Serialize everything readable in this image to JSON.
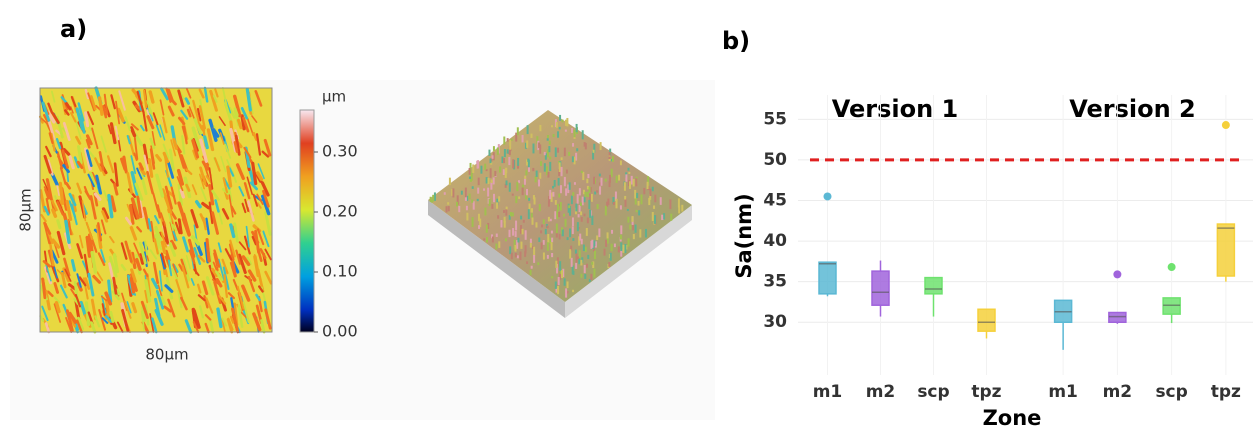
{
  "panel_a": {
    "label": "a)",
    "map": {
      "x_label": "80µm",
      "y_label": "80µm"
    },
    "colorbar": {
      "unit": "µm",
      "lim": [
        0,
        0.37
      ],
      "ticks": [
        {
          "value": 0,
          "label": "0.00"
        },
        {
          "value": 0.1,
          "label": "0.10"
        },
        {
          "value": 0.2,
          "label": "0.20"
        },
        {
          "value": 0.3,
          "label": "0.30"
        }
      ]
    }
  },
  "chart_data": {
    "type": "box",
    "label": "b)",
    "y_label": "Sa(nm)",
    "x_label": "Zone",
    "ylim": [
      23.5,
      58
    ],
    "yticks": [
      30,
      35,
      40,
      45,
      50,
      55
    ],
    "grid": true,
    "threshold": {
      "value": 50,
      "color": "#e02020"
    },
    "colors": [
      "#5bb8d4",
      "#a064dc",
      "#6ee26e",
      "#f5d03b"
    ],
    "facets": [
      {
        "title": "Version 1",
        "categories": [
          "m1",
          "m2",
          "scp",
          "tpz"
        ],
        "boxes": [
          {
            "low": 33.2,
            "q1": 33.5,
            "median": 37.2,
            "q3": 37.4,
            "high": 37.4,
            "outliers": [
              45.5
            ]
          },
          {
            "low": 30.7,
            "q1": 32.1,
            "median": 33.7,
            "q3": 36.3,
            "high": 37.6
          },
          {
            "low": 30.7,
            "q1": 33.5,
            "median": 34.1,
            "q3": 35.5,
            "high": 35.5
          },
          {
            "low": 28.0,
            "q1": 28.9,
            "median": 30.0,
            "q3": 31.6,
            "high": 31.6
          }
        ]
      },
      {
        "title": "Version 2",
        "categories": [
          "m1",
          "m2",
          "scp",
          "tpz"
        ],
        "boxes": [
          {
            "low": 26.6,
            "q1": 30.0,
            "median": 31.3,
            "q3": 32.7,
            "high": 32.7
          },
          {
            "low": 29.8,
            "q1": 30.0,
            "median": 30.7,
            "q3": 31.2,
            "high": 31.2,
            "outliers": [
              35.9
            ]
          },
          {
            "low": 29.9,
            "q1": 31.0,
            "median": 32.1,
            "q3": 33.0,
            "high": 33.0,
            "outliers": [
              36.8
            ]
          },
          {
            "low": 35.0,
            "q1": 35.7,
            "median": 41.6,
            "q3": 42.1,
            "high": 42.1,
            "outliers": [
              54.3
            ]
          }
        ]
      }
    ]
  }
}
